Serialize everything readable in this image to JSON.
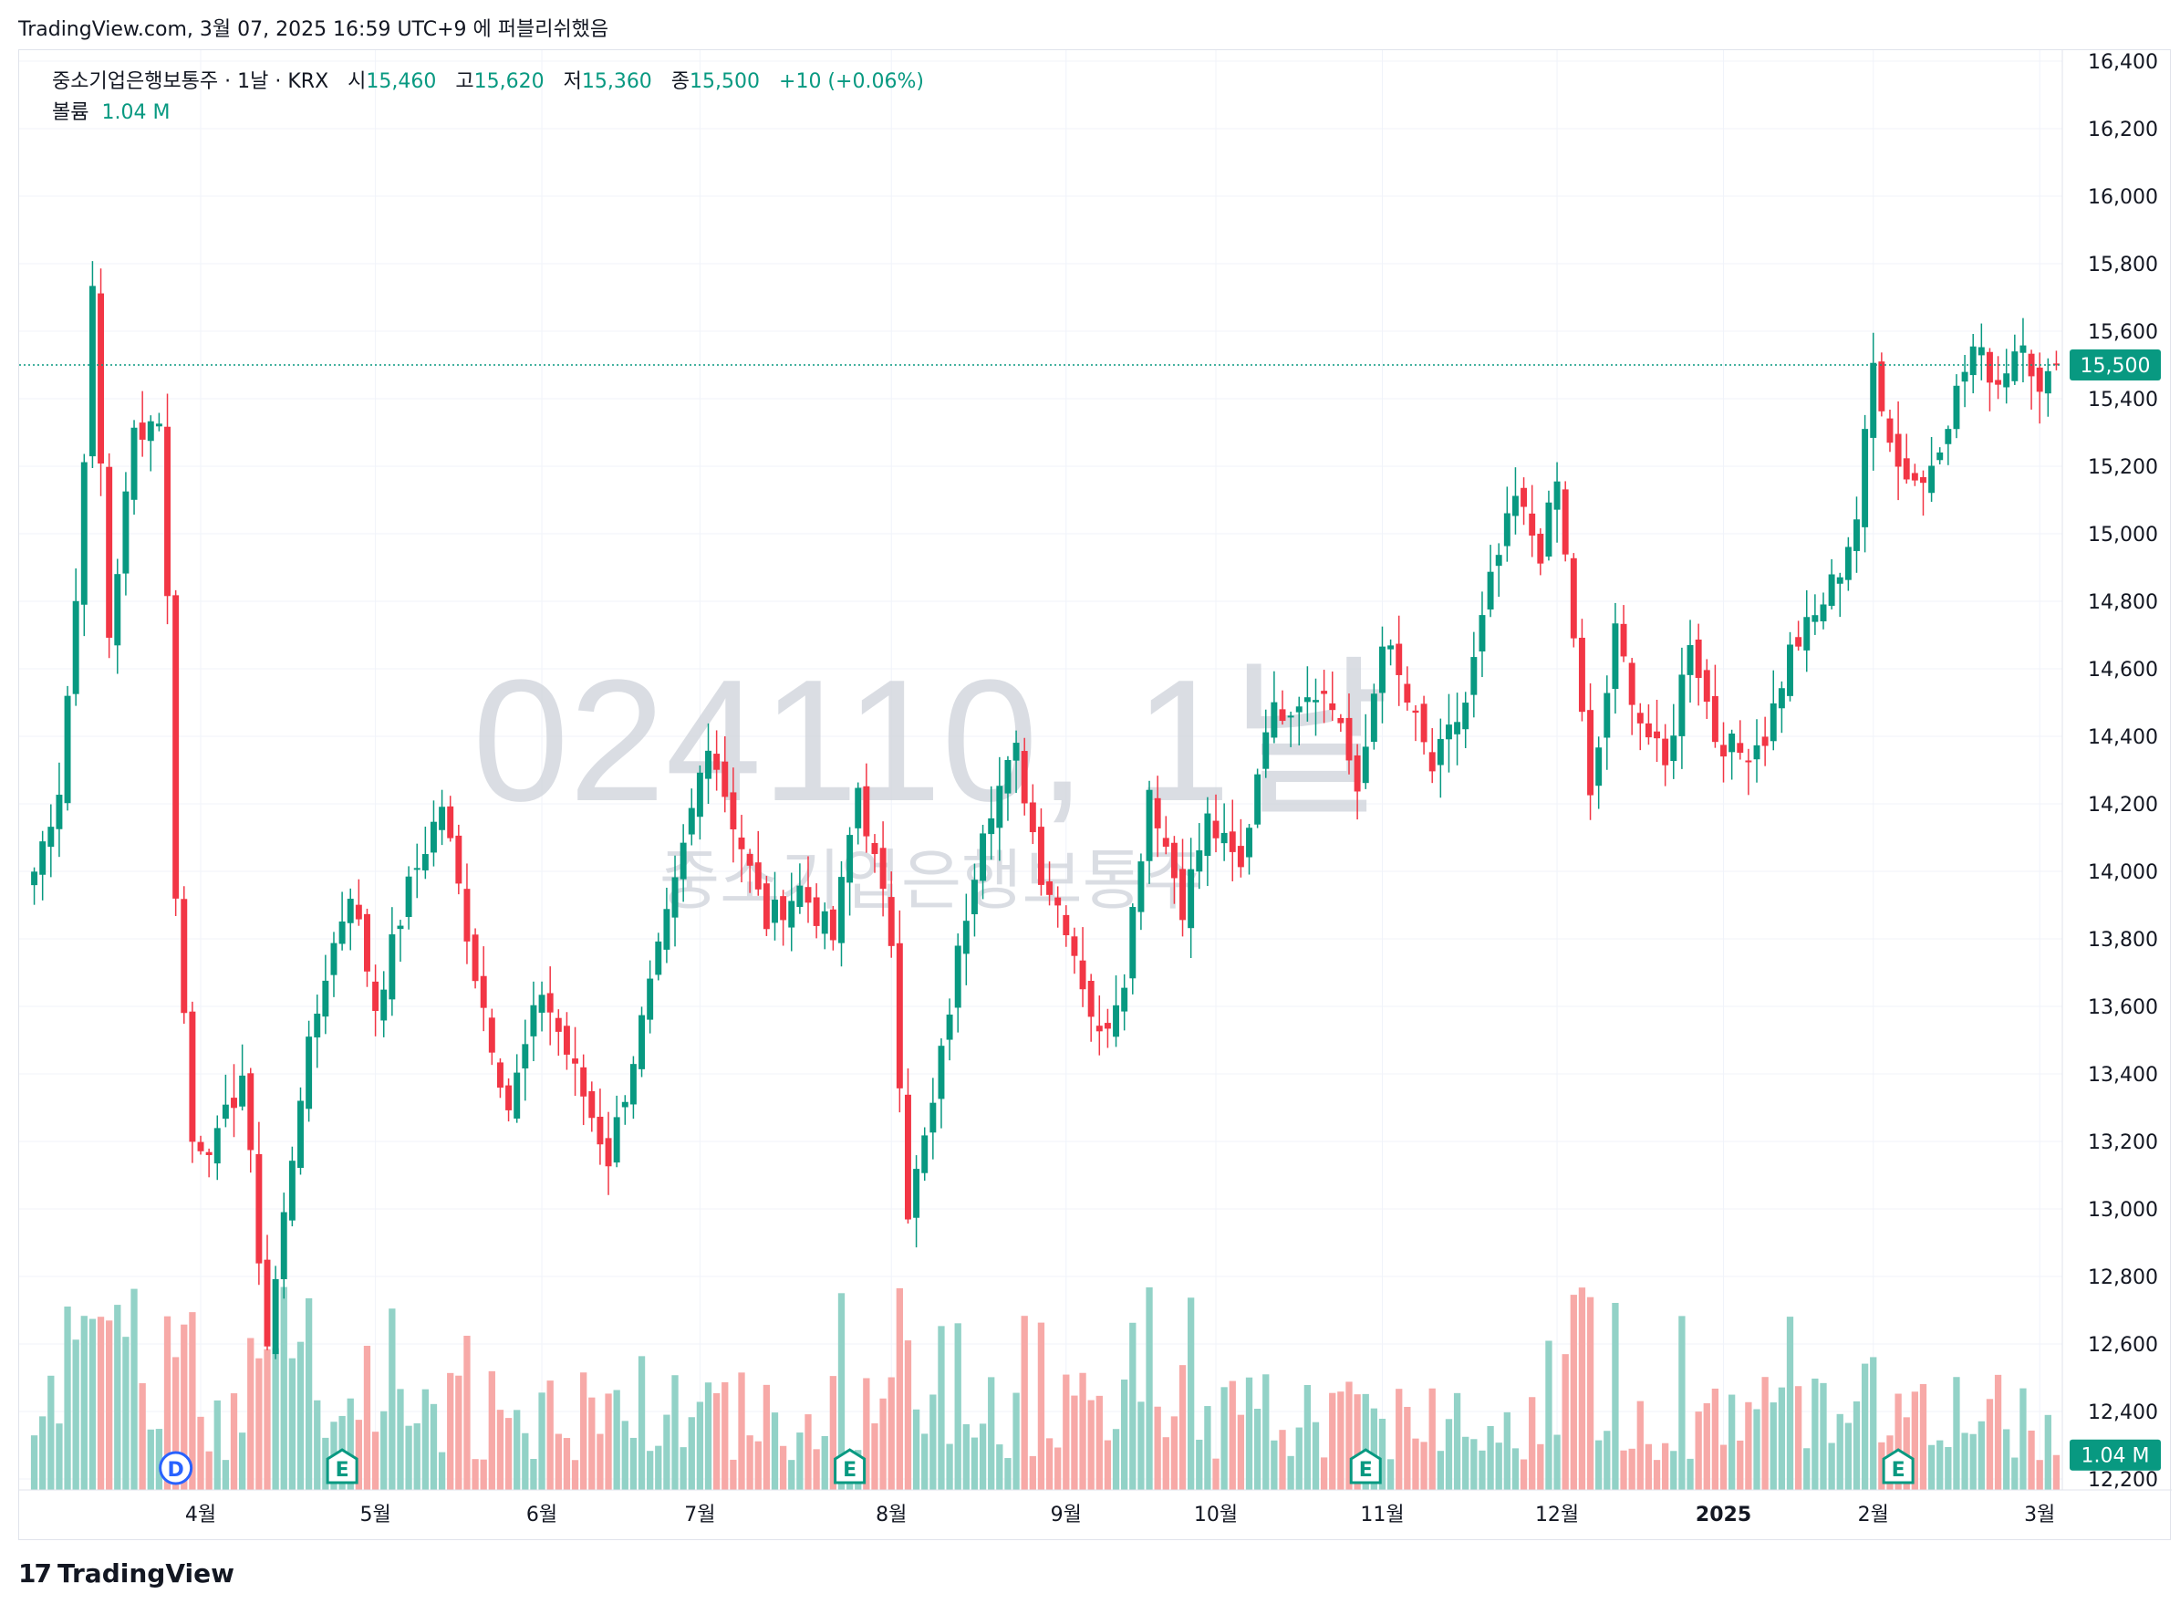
{
  "caption": "TradingView.com, 3월 07, 2025 16:59 UTC+9 에 퍼블리쉬했음",
  "header": {
    "symbol_line": "중소기업은행보통주 · 1날 · KRX",
    "open_label": "시",
    "open": "15,460",
    "high_label": "고",
    "high": "15,620",
    "low_label": "저",
    "low": "15,360",
    "close_label": "종",
    "close": "15,500",
    "change": "+10 (+0.06%)",
    "volume_label": "볼륨",
    "volume": "1.04 M"
  },
  "watermark": {
    "code": "024110, 1날",
    "name": "중소기업은행보통주"
  },
  "logo_text": "TradingView",
  "colors": {
    "up": "#089981",
    "down": "#f23645",
    "vol_up": "#92d2c7",
    "vol_down": "#f7a9a7",
    "grid": "#f0f3fa",
    "axis_text": "#131722"
  },
  "chart_data": {
    "type": "candlestick",
    "title": "중소기업은행보통주 · 1날 · KRX",
    "y_axis": {
      "min": 12200,
      "max": 16400,
      "ticks": [
        "16,400",
        "16,200",
        "16,000",
        "15,800",
        "15,600",
        "15,400",
        "15,200",
        "15,000",
        "14,800",
        "14,600",
        "14,400",
        "14,200",
        "14,000",
        "13,800",
        "13,600",
        "13,400",
        "13,200",
        "13,000",
        "12,800",
        "12,600",
        "12,400",
        "12,200"
      ],
      "position": "right"
    },
    "x_axis": {
      "labels": [
        {
          "label": "4월",
          "index": 20
        },
        {
          "label": "5월",
          "index": 41
        },
        {
          "label": "6월",
          "index": 61
        },
        {
          "label": "7월",
          "index": 80
        },
        {
          "label": "8월",
          "index": 103
        },
        {
          "label": "9월",
          "index": 124
        },
        {
          "label": "10월",
          "index": 142
        },
        {
          "label": "11월",
          "index": 162
        },
        {
          "label": "12월",
          "index": 183
        },
        {
          "label": "2025",
          "index": 203
        },
        {
          "label": "2월",
          "index": 221
        },
        {
          "label": "3월",
          "index": 241
        }
      ]
    },
    "last_price": {
      "value": 15500,
      "label": "15,500"
    },
    "last_volume": {
      "value": 1040000,
      "label": "1.04 M"
    },
    "events": [
      {
        "type": "D",
        "index": 17
      },
      {
        "type": "E",
        "index": 37
      },
      {
        "type": "E",
        "index": 98
      },
      {
        "type": "E",
        "index": 160
      },
      {
        "type": "E",
        "index": 224
      }
    ],
    "volume_max": 3500000,
    "key_points": [
      {
        "i": 0,
        "c": 14000
      },
      {
        "i": 3,
        "c": 14250
      },
      {
        "i": 5,
        "c": 14800
      },
      {
        "i": 7,
        "c": 15700
      },
      {
        "i": 9,
        "c": 14700
      },
      {
        "i": 12,
        "c": 15300
      },
      {
        "i": 15,
        "c": 15350
      },
      {
        "i": 16,
        "c": 14800
      },
      {
        "i": 17,
        "c": 13950
      },
      {
        "i": 19,
        "c": 13200
      },
      {
        "i": 22,
        "c": 13200
      },
      {
        "i": 25,
        "c": 13400
      },
      {
        "i": 28,
        "c": 12600
      },
      {
        "i": 32,
        "c": 13350
      },
      {
        "i": 35,
        "c": 13700
      },
      {
        "i": 38,
        "c": 13950
      },
      {
        "i": 41,
        "c": 13600
      },
      {
        "i": 45,
        "c": 13950
      },
      {
        "i": 49,
        "c": 14200
      },
      {
        "i": 53,
        "c": 13700
      },
      {
        "i": 57,
        "c": 13300
      },
      {
        "i": 61,
        "c": 13650
      },
      {
        "i": 65,
        "c": 13400
      },
      {
        "i": 69,
        "c": 13150
      },
      {
        "i": 73,
        "c": 13550
      },
      {
        "i": 77,
        "c": 13950
      },
      {
        "i": 81,
        "c": 14400
      },
      {
        "i": 84,
        "c": 14150
      },
      {
        "i": 88,
        "c": 13850
      },
      {
        "i": 92,
        "c": 13950
      },
      {
        "i": 96,
        "c": 13800
      },
      {
        "i": 99,
        "c": 14250
      },
      {
        "i": 103,
        "c": 13800
      },
      {
        "i": 105,
        "c": 13000
      },
      {
        "i": 108,
        "c": 13300
      },
      {
        "i": 111,
        "c": 13750
      },
      {
        "i": 114,
        "c": 14150
      },
      {
        "i": 118,
        "c": 14350
      },
      {
        "i": 121,
        "c": 14000
      },
      {
        "i": 124,
        "c": 13850
      },
      {
        "i": 128,
        "c": 13500
      },
      {
        "i": 131,
        "c": 13700
      },
      {
        "i": 134,
        "c": 14250
      },
      {
        "i": 138,
        "c": 13900
      },
      {
        "i": 141,
        "c": 14150
      },
      {
        "i": 145,
        "c": 14000
      },
      {
        "i": 148,
        "c": 14450
      },
      {
        "i": 151,
        "c": 14500
      },
      {
        "i": 154,
        "c": 14550
      },
      {
        "i": 157,
        "c": 14450
      },
      {
        "i": 159,
        "c": 14200
      },
      {
        "i": 162,
        "c": 14700
      },
      {
        "i": 165,
        "c": 14500
      },
      {
        "i": 168,
        "c": 14300
      },
      {
        "i": 172,
        "c": 14500
      },
      {
        "i": 175,
        "c": 14850
      },
      {
        "i": 178,
        "c": 15100
      },
      {
        "i": 181,
        "c": 14950
      },
      {
        "i": 183,
        "c": 15150
      },
      {
        "i": 185,
        "c": 14700
      },
      {
        "i": 187,
        "c": 14200
      },
      {
        "i": 190,
        "c": 14700
      },
      {
        "i": 193,
        "c": 14450
      },
      {
        "i": 196,
        "c": 14300
      },
      {
        "i": 199,
        "c": 14700
      },
      {
        "i": 202,
        "c": 14400
      },
      {
        "i": 205,
        "c": 14350
      },
      {
        "i": 208,
        "c": 14400
      },
      {
        "i": 211,
        "c": 14650
      },
      {
        "i": 214,
        "c": 14750
      },
      {
        "i": 217,
        "c": 14900
      },
      {
        "i": 219,
        "c": 15050
      },
      {
        "i": 221,
        "c": 15500
      },
      {
        "i": 224,
        "c": 15200
      },
      {
        "i": 227,
        "c": 15150
      },
      {
        "i": 230,
        "c": 15350
      },
      {
        "i": 233,
        "c": 15550
      },
      {
        "i": 236,
        "c": 15450
      },
      {
        "i": 239,
        "c": 15600
      },
      {
        "i": 241,
        "c": 15400
      },
      {
        "i": 243,
        "c": 15500
      }
    ]
  }
}
